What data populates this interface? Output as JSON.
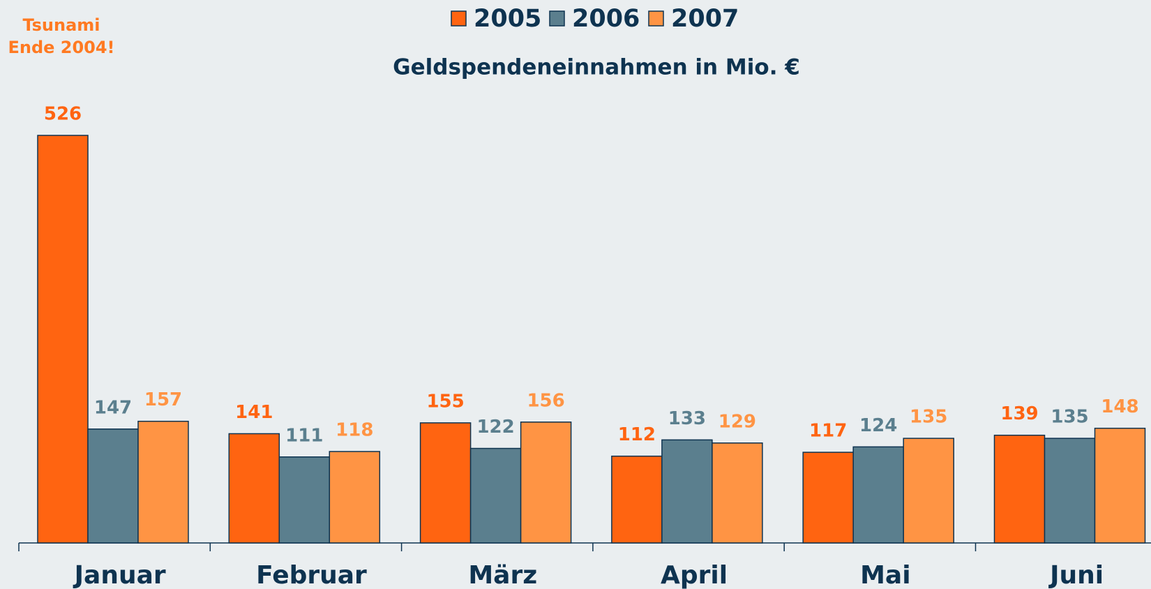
{
  "chart_data": {
    "type": "bar",
    "title": "Geldspendeneinnahmen in Mio. €",
    "annotation": "Tsunami Ende 2004!",
    "categories": [
      "Januar",
      "Februar",
      "März",
      "April",
      "Mai",
      "Juni"
    ],
    "series": [
      {
        "name": "2005",
        "color": "#ff6411",
        "values": [
          526,
          141,
          155,
          112,
          117,
          139
        ]
      },
      {
        "name": "2006",
        "color": "#5b7f8e",
        "values": [
          147,
          111,
          122,
          133,
          124,
          135
        ]
      },
      {
        "name": "2007",
        "color": "#ff9444",
        "values": [
          157,
          118,
          156,
          129,
          135,
          148
        ]
      }
    ],
    "legend": "top"
  }
}
